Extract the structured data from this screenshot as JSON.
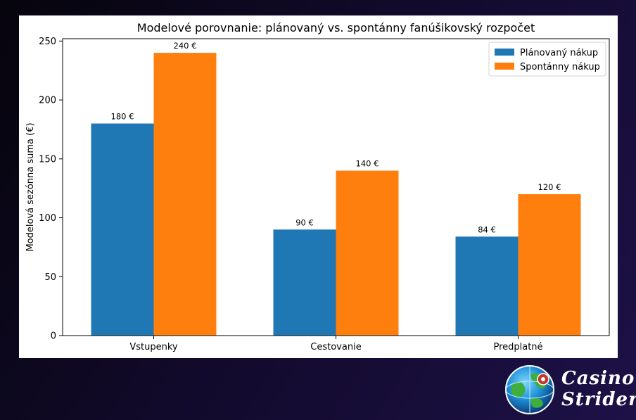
{
  "chart_data": {
    "type": "bar",
    "title": "Modelové porovnanie: plánovaný vs. spontánny fanúšikovský rozpočet",
    "xlabel": "",
    "ylabel": "Modelová sezónna suma (€)",
    "categories": [
      "Vstupenky",
      "Cestovanie",
      "Predplatné"
    ],
    "series": [
      {
        "name": "Plánovaný nákup",
        "color": "#1f77b4",
        "values": [
          180,
          90,
          84
        ],
        "labels": [
          "180 €",
          "90 €",
          "84 €"
        ]
      },
      {
        "name": "Spontánny nákup",
        "color": "#ff7f0e",
        "values": [
          240,
          140,
          120
        ],
        "labels": [
          "240 €",
          "140 €",
          "120 €"
        ]
      }
    ],
    "ylim": [
      0,
      252
    ],
    "yticks": [
      0,
      50,
      100,
      150,
      200,
      250
    ],
    "legend_position": "top-right",
    "grid": false
  },
  "brand": {
    "line1": "Casino",
    "line2": "Strider"
  }
}
